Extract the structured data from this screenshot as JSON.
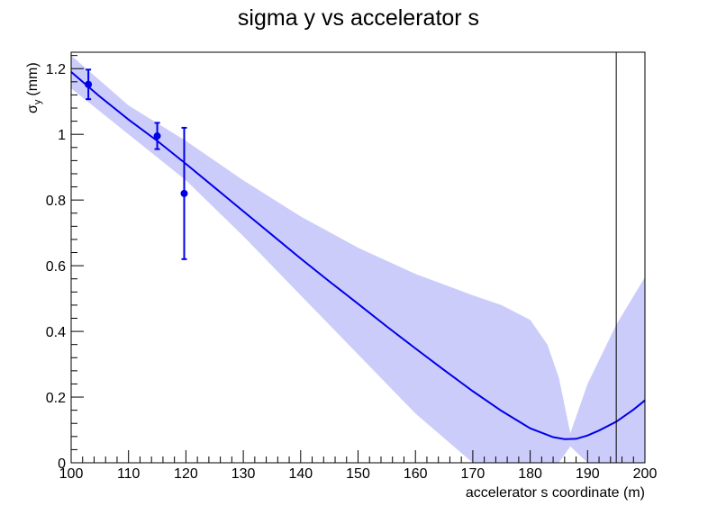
{
  "chart_data": {
    "type": "line",
    "title": "sigma y vs accelerator s",
    "xlabel": "accelerator s coordinate (m)",
    "ylabel_main": "σ",
    "ylabel_sub": "y",
    "ylabel_unit": "(mm)",
    "xlim": [
      100,
      200
    ],
    "ylim": [
      0,
      1.25
    ],
    "x_ticks": [
      "100",
      "110",
      "120",
      "130",
      "140",
      "150",
      "160",
      "170",
      "180",
      "190",
      "200"
    ],
    "y_ticks": [
      "0",
      "0.2",
      "0.4",
      "0.6",
      "0.8",
      "1",
      "1.2"
    ],
    "grid": false,
    "series": [
      {
        "kind": "fit",
        "color": "#0000e6",
        "x": [
          100,
          105,
          110,
          115,
          120,
          125,
          130,
          135,
          140,
          145,
          150,
          155,
          160,
          165,
          170,
          175,
          180,
          184,
          186,
          188,
          190,
          192,
          195,
          198,
          200
        ],
        "y": [
          1.19,
          1.115,
          1.045,
          0.98,
          0.91,
          0.838,
          0.766,
          0.694,
          0.622,
          0.552,
          0.484,
          0.415,
          0.348,
          0.282,
          0.218,
          0.158,
          0.105,
          0.078,
          0.072,
          0.073,
          0.083,
          0.098,
          0.125,
          0.162,
          0.19
        ]
      },
      {
        "kind": "band",
        "color": "#ccccfa",
        "x": [
          100,
          110,
          120,
          130,
          140,
          150,
          160,
          170,
          175,
          180,
          183,
          185,
          187,
          190,
          195,
          200
        ],
        "upper": [
          1.24,
          1.088,
          0.98,
          0.86,
          0.75,
          0.655,
          0.575,
          0.51,
          0.48,
          0.435,
          0.36,
          0.26,
          0.09,
          0.24,
          0.42,
          0.565
        ],
        "lower": [
          1.14,
          1.0,
          0.86,
          0.69,
          0.51,
          0.33,
          0.15,
          0.0,
          0.0,
          0.0,
          0.0,
          0.0,
          0.05,
          0.0,
          0.0,
          0.0
        ]
      },
      {
        "kind": "points",
        "color": "#0000e6",
        "x": [
          103,
          115,
          119.7
        ],
        "y": [
          1.152,
          0.995,
          0.82
        ],
        "yerr": [
          0.045,
          0.04,
          0.2
        ]
      }
    ],
    "marker_line_x": 195
  }
}
